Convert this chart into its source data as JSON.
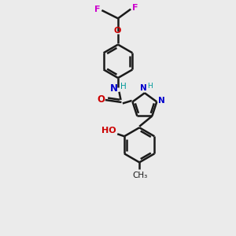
{
  "bg_color": "#ebebeb",
  "bond_color": "#1a1a1a",
  "bond_width": 1.8,
  "F_color": "#cc00cc",
  "O_color": "#cc0000",
  "N_color": "#0000cc",
  "H_color": "#009999",
  "figsize": [
    3.0,
    3.0
  ],
  "dpi": 100,
  "xlim": [
    0,
    10
  ],
  "ylim": [
    0,
    10
  ]
}
